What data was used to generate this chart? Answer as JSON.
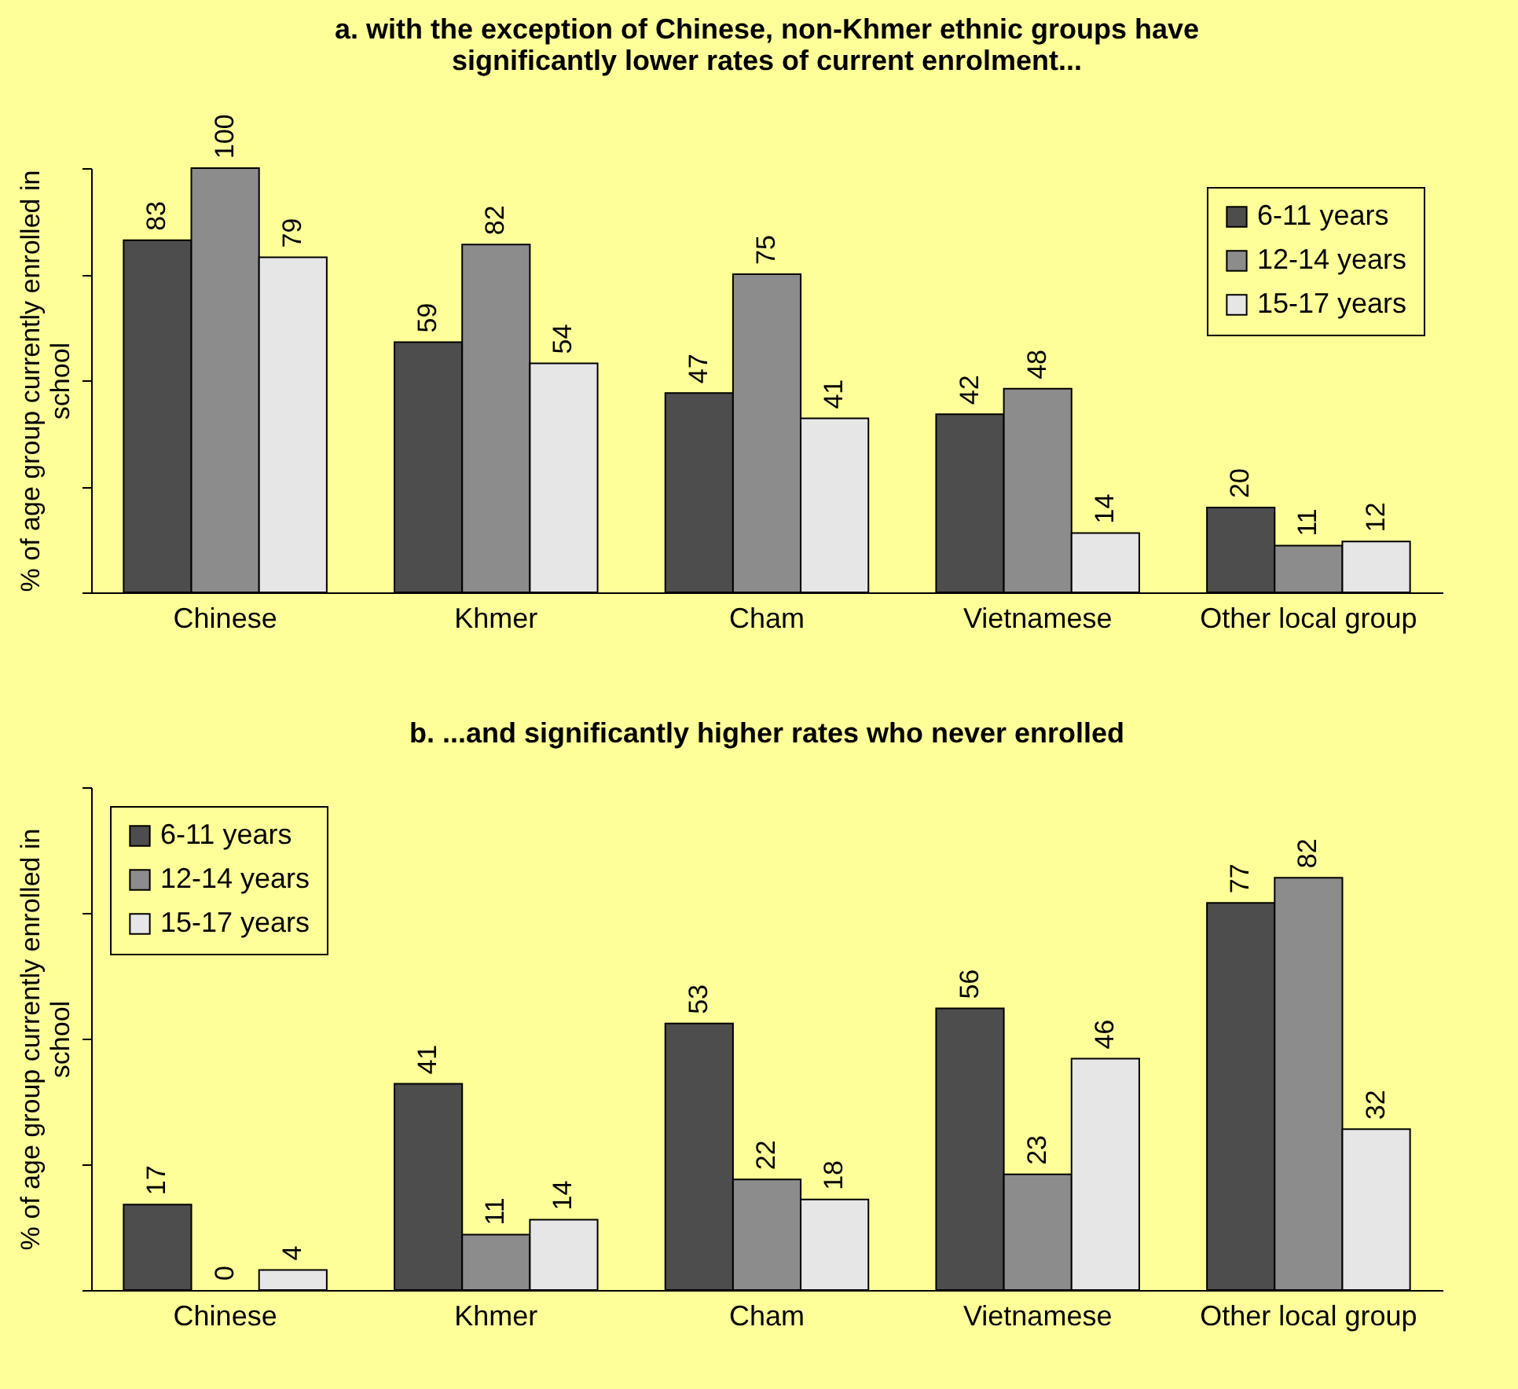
{
  "chart_data": [
    {
      "type": "bar",
      "title": "a. with the exception of Chinese, non-Khmer ethnic groups have significantly lower rates of current enrolment...",
      "ylabel": "% of age group currently enrolled in school",
      "categories": [
        "Chinese",
        "Khmer",
        "Cham",
        "Vietnamese",
        "Other local group"
      ],
      "series": [
        {
          "name": "6-11 years",
          "color": "#4d4d4d",
          "values": [
            83,
            59,
            47,
            42,
            20
          ]
        },
        {
          "name": "12-14 years",
          "color": "#8c8c8c",
          "values": [
            100,
            82,
            75,
            48,
            11
          ]
        },
        {
          "name": "15-17 years",
          "color": "#e6e6e6",
          "values": [
            79,
            54,
            41,
            14,
            12
          ]
        }
      ],
      "ylim": [
        0,
        100
      ],
      "yticks": [
        {
          "value": 0,
          "label": null
        },
        {
          "value": 25,
          "label": null
        },
        {
          "value": 50,
          "label": null
        },
        {
          "value": 75,
          "label": null
        },
        {
          "value": 100,
          "label": null
        }
      ],
      "tick_labels": "x",
      "data_labels": true,
      "legend": "top right",
      "grid": false
    },
    {
      "type": "bar",
      "title": "b.  ...and significantly higher rates who never enrolled",
      "ylabel": "% of age group currently enrolled in school",
      "categories": [
        "Chinese",
        "Khmer",
        "Cham",
        "Vietnamese",
        "Other local group"
      ],
      "series": [
        {
          "name": "6-11 years",
          "color": "#4d4d4d",
          "values": [
            17,
            41,
            53,
            56,
            77
          ]
        },
        {
          "name": "12-14 years",
          "color": "#8c8c8c",
          "values": [
            0,
            11,
            22,
            23,
            82
          ]
        },
        {
          "name": "15-17 years",
          "color": "#e6e6e6",
          "values": [
            4,
            14,
            18,
            46,
            32
          ]
        }
      ],
      "ylim": [
        0,
        100
      ],
      "yticks": [
        {
          "value": 0,
          "label": null
        },
        {
          "value": 25,
          "label": null
        },
        {
          "value": 50,
          "label": null
        },
        {
          "value": 75,
          "label": null
        },
        {
          "value": 100,
          "label": null
        }
      ],
      "tick_labels": "x",
      "data_labels": true,
      "legend": "top left",
      "grid": false
    }
  ]
}
